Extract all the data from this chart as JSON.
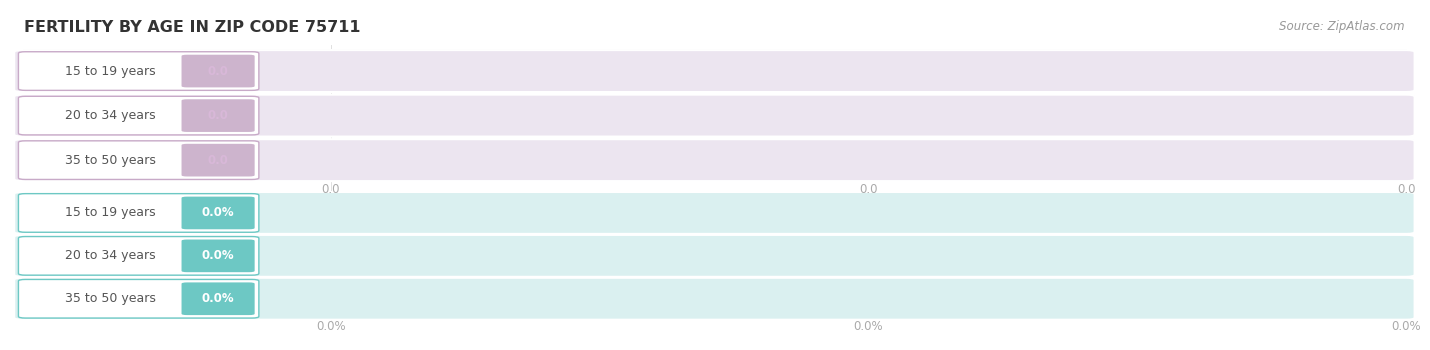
{
  "title": "FERTILITY BY AGE IN ZIP CODE 75711",
  "source": "Source: ZipAtlas.com",
  "background_color": "#ffffff",
  "categories": [
    "15 to 19 years",
    "20 to 34 years",
    "35 to 50 years"
  ],
  "top_values_str": [
    "0.0",
    "0.0",
    "0.0"
  ],
  "bottom_values_str": [
    "0.0%",
    "0.0%",
    "0.0%"
  ],
  "top_bar_bg": "#ece5f0",
  "bottom_bar_bg": "#daf0f0",
  "top_badge_color": "#cdb4cd",
  "bottom_badge_color": "#6dc8c4",
  "top_badge_text": "#d8b8d8",
  "bottom_badge_text": "#ffffff",
  "top_pill_border": "#c8aac8",
  "bottom_pill_border": "#6dc8c4",
  "label_text_color": "#555555",
  "tick_color": "#aaaaaa",
  "separator_color": "#e0e0e0",
  "title_color": "#333333",
  "source_color": "#999999",
  "title_fontsize": 11.5,
  "source_fontsize": 8.5,
  "label_fontsize": 9,
  "badge_fontsize": 8.5,
  "tick_fontsize": 8.5,
  "top_tick_labels": [
    "0.0",
    "0.0",
    "0.0"
  ],
  "bottom_tick_labels": [
    "0.0%",
    "0.0%",
    "0.0%"
  ]
}
